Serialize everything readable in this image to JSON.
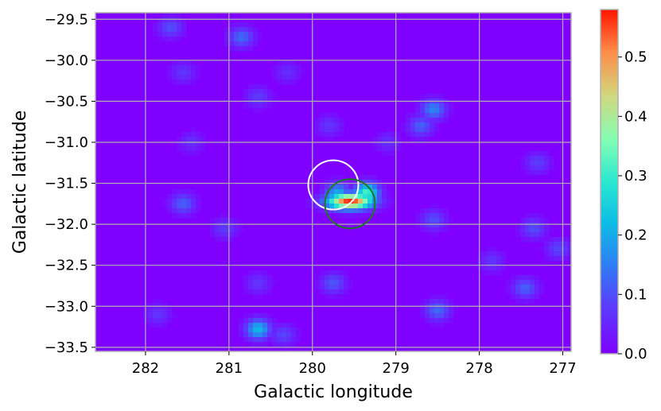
{
  "chart_data": {
    "type": "heatmap",
    "title": "",
    "xlabel": "Galactic longitude",
    "ylabel": "Galactic latitude",
    "xlim": [
      282.6,
      276.9
    ],
    "ylim": [
      -33.55,
      -29.42
    ],
    "x_reversed": true,
    "grid": true,
    "colormap": "rainbow",
    "xticks": [
      282,
      281,
      280,
      279,
      278,
      277
    ],
    "xtick_labels": [
      "282",
      "281",
      "280",
      "279",
      "278",
      "277"
    ],
    "yticks": [
      -29.5,
      -30.0,
      -30.5,
      -31.0,
      -31.5,
      -32.0,
      -32.5,
      -33.0,
      -33.5
    ],
    "ytick_labels": [
      "−29.5",
      "−30.0",
      "−30.5",
      "−31.0",
      "−31.5",
      "−32.0",
      "−32.5",
      "−33.0",
      "−33.5"
    ],
    "colorbar": {
      "range": [
        0.0,
        0.58
      ],
      "ticks": [
        0.0,
        0.1,
        0.2,
        0.3,
        0.4,
        0.5
      ],
      "tick_labels": [
        "0.0",
        "0.1",
        "0.2",
        "0.3",
        "0.4",
        "0.5"
      ]
    },
    "peak": {
      "l": 279.55,
      "b": -31.72,
      "value": 0.57
    },
    "hotspots": [
      {
        "l": 279.35,
        "b": -31.62,
        "value": 0.32
      },
      {
        "l": 279.7,
        "b": -31.62,
        "value": 0.2
      },
      {
        "l": 281.7,
        "b": -29.6,
        "value": 0.1
      },
      {
        "l": 280.85,
        "b": -29.72,
        "value": 0.13
      },
      {
        "l": 281.55,
        "b": -30.15,
        "value": 0.07
      },
      {
        "l": 280.3,
        "b": -30.15,
        "value": 0.06
      },
      {
        "l": 280.65,
        "b": -30.45,
        "value": 0.08
      },
      {
        "l": 278.55,
        "b": -30.6,
        "value": 0.16
      },
      {
        "l": 278.7,
        "b": -30.8,
        "value": 0.12
      },
      {
        "l": 279.8,
        "b": -30.8,
        "value": 0.07
      },
      {
        "l": 281.45,
        "b": -31.0,
        "value": 0.06
      },
      {
        "l": 279.1,
        "b": -31.0,
        "value": 0.06
      },
      {
        "l": 277.3,
        "b": -31.25,
        "value": 0.08
      },
      {
        "l": 281.55,
        "b": -31.75,
        "value": 0.12
      },
      {
        "l": 278.55,
        "b": -31.95,
        "value": 0.1
      },
      {
        "l": 281.05,
        "b": -32.05,
        "value": 0.08
      },
      {
        "l": 277.35,
        "b": -32.05,
        "value": 0.1
      },
      {
        "l": 277.05,
        "b": -32.3,
        "value": 0.09
      },
      {
        "l": 277.85,
        "b": -32.45,
        "value": 0.07
      },
      {
        "l": 279.75,
        "b": -32.72,
        "value": 0.11
      },
      {
        "l": 280.65,
        "b": -32.72,
        "value": 0.07
      },
      {
        "l": 277.45,
        "b": -32.78,
        "value": 0.12
      },
      {
        "l": 278.5,
        "b": -33.05,
        "value": 0.13
      },
      {
        "l": 280.65,
        "b": -33.28,
        "value": 0.22
      },
      {
        "l": 280.35,
        "b": -33.35,
        "value": 0.09
      },
      {
        "l": 281.85,
        "b": -33.1,
        "value": 0.07
      }
    ],
    "circles": [
      {
        "l": 279.75,
        "b": -31.52,
        "radius_deg": 0.3,
        "color": "#ffffff"
      },
      {
        "l": 279.55,
        "b": -31.75,
        "radius_deg": 0.3,
        "color": "#1e7a1e"
      }
    ]
  }
}
